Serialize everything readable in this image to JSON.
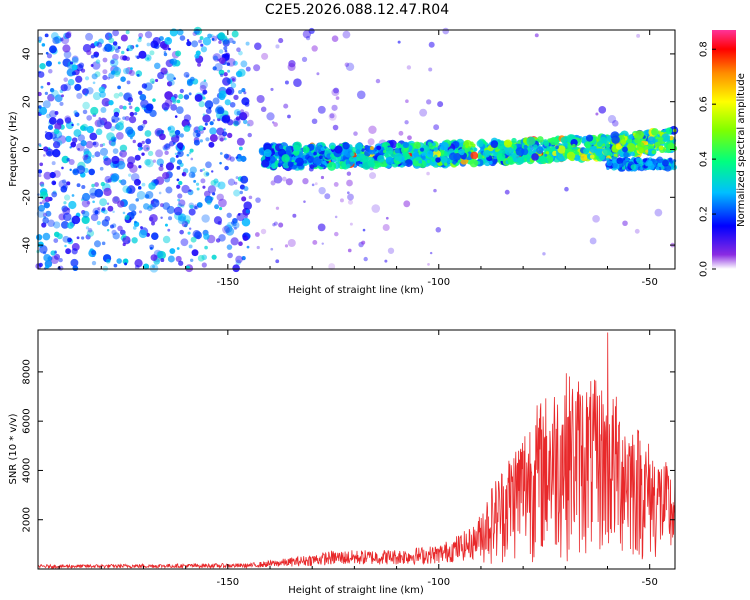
{
  "title": "C2E5.2026.088.12.47.R04",
  "chart_data": [
    {
      "type": "heatmap",
      "name": "spectrogram",
      "xlabel": "Height of straight line (km)",
      "ylabel": "Frequency (Hz)",
      "xlim": [
        -195,
        -44
      ],
      "ylim": [
        -50,
        50
      ],
      "xticks": [
        -150,
        -100,
        -50
      ],
      "yticks": [
        -40,
        -20,
        0,
        20,
        40
      ],
      "colorbar": {
        "label": "Normalized spectral amplitude",
        "range": [
          0,
          0.87
        ],
        "ticks": [
          0.0,
          0.2,
          0.4,
          0.6,
          0.8
        ]
      },
      "signal_track": {
        "description_points_x": [
          -140,
          -100,
          -60,
          -45
        ],
        "frequency_hz": [
          -3,
          -2,
          1,
          4
        ]
      }
    },
    {
      "type": "line",
      "name": "snr",
      "xlabel": "Height of straight line (km)",
      "ylabel": "SNR (10 * v/v)",
      "xlim": [
        -195,
        -44
      ],
      "ylim": [
        0,
        9700
      ],
      "xticks": [
        -150,
        -100,
        -50
      ],
      "yticks": [
        2000,
        4000,
        6000,
        8000
      ],
      "color": "#e8282a",
      "envelope": {
        "x": [
          -195,
          -145,
          -135,
          -125,
          -110,
          -100,
          -92,
          -88,
          -82,
          -78,
          -70,
          -60,
          -55,
          -50,
          -44
        ],
        "y": [
          150,
          200,
          400,
          650,
          700,
          850,
          1500,
          2500,
          4000,
          5000,
          6200,
          5800,
          5000,
          4000,
          3000
        ]
      },
      "peak": {
        "x": -60,
        "y": 9600
      }
    }
  ]
}
